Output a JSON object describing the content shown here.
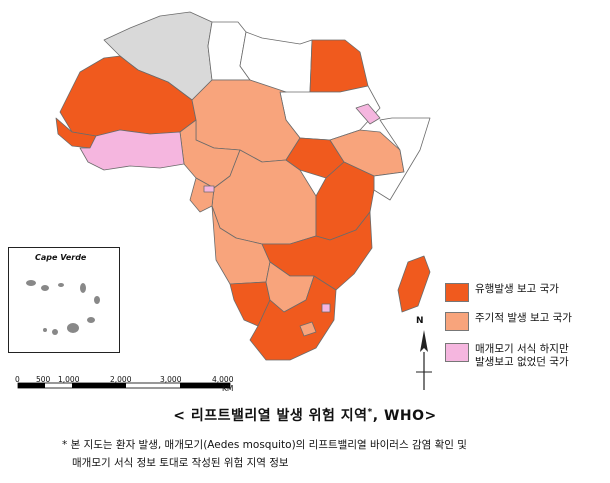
{
  "caption": {
    "prefix": "< 리프트밸리열 발생 위험 지역",
    "superscript": "*",
    "suffix": ", WHO>"
  },
  "note": {
    "line1": "* 본 지도는 환자 발생, 매개모기(Aedes mosquito)의 리프트밸리열 바이러스 감염 확인 및",
    "line2": "매개모기 서식 정보 토대로 작성된 위험 지역 정보"
  },
  "inset": {
    "title": "Cape Verde"
  },
  "scale_bar": {
    "labels": [
      "0",
      "500",
      "1,000",
      "2,000",
      "3,000",
      "4,000"
    ],
    "unit": "KM"
  },
  "compass": {
    "label": "N"
  },
  "legend": [
    {
      "label": "유행발생 보고 국가",
      "color": "#f05a1e"
    },
    {
      "label": "주기적 발생 보고 국가",
      "color": "#f8a47c"
    },
    {
      "label": "매개모기 서식 하지만\n발생보고 없었던 국가",
      "color": "#f5b6df"
    }
  ],
  "colors": {
    "epidemic": "#f05a1e",
    "periodic": "#f8a47c",
    "vector_only": "#f5b6df",
    "no_data": "#d9d9d9",
    "not_at_risk": "#ffffff"
  }
}
